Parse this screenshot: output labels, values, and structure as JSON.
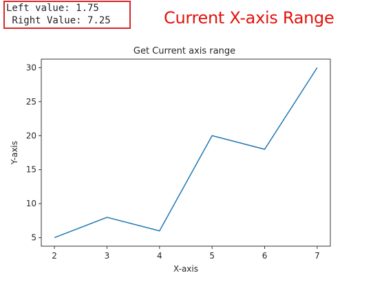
{
  "output_box": {
    "line1": "Left value: 1.75",
    "line2": " Right Value: 7.25"
  },
  "headline": "Current X-axis Range",
  "colors": {
    "box_border": "#d62728",
    "headline": "#e3120b",
    "line": "#1f77b4"
  },
  "chart_data": {
    "type": "line",
    "title": "Get Current axis range",
    "xlabel": "X-axis",
    "ylabel": "Y-axis",
    "x": [
      2,
      3,
      4,
      5,
      6,
      7
    ],
    "series": [
      {
        "values": [
          5,
          8,
          6,
          20,
          18,
          30
        ]
      }
    ],
    "xlim": [
      1.75,
      7.25
    ],
    "ylim": [
      3.75,
      31.25
    ],
    "xticks": [
      2,
      3,
      4,
      5,
      6,
      7
    ],
    "yticks": [
      5,
      10,
      15,
      20,
      25,
      30
    ],
    "grid": false
  }
}
